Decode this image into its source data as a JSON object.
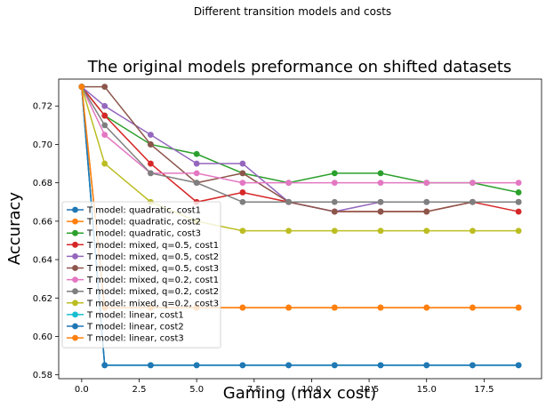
{
  "figure": {
    "suptitle": "Different transition models and costs"
  },
  "chart_data": {
    "type": "line",
    "title": "The original models preformance on shifted datasets",
    "xlabel": "Gaming (max cost)",
    "ylabel": "Accuracy",
    "xlim": [
      -1,
      20
    ],
    "ylim": [
      0.578,
      0.734
    ],
    "xticks": [
      0.0,
      2.5,
      5.0,
      7.5,
      10.0,
      12.5,
      15.0,
      17.5
    ],
    "xtick_labels": [
      "0.0",
      "2.5",
      "5.0",
      "7.5",
      "10.0",
      "12.5",
      "15.0",
      "17.5"
    ],
    "yticks": [
      0.58,
      0.6,
      0.62,
      0.64,
      0.66,
      0.68,
      0.7,
      0.72
    ],
    "ytick_labels": [
      "0.58",
      "0.60",
      "0.62",
      "0.64",
      "0.66",
      "0.68",
      "0.70",
      "0.72"
    ],
    "grid": false,
    "legend_position": "lower-left",
    "x": [
      0,
      1,
      3,
      5,
      7,
      9,
      11,
      13,
      15,
      17,
      19
    ],
    "series": [
      {
        "name": "T model: quadratic, cost1",
        "color": "#1f77b4",
        "values": [
          0.73,
          0.585,
          0.585,
          0.585,
          0.585,
          0.585,
          0.585,
          0.585,
          0.585,
          0.585,
          0.585
        ]
      },
      {
        "name": "T model: quadratic, cost2",
        "color": "#ff7f0e",
        "values": [
          0.73,
          0.615,
          0.615,
          0.615,
          0.615,
          0.615,
          0.615,
          0.615,
          0.615,
          0.615,
          0.615
        ]
      },
      {
        "name": "T model: quadratic, cost3",
        "color": "#2ca02c",
        "values": [
          0.73,
          0.715,
          0.7,
          0.695,
          0.685,
          0.68,
          0.685,
          0.685,
          0.68,
          0.68,
          0.675
        ]
      },
      {
        "name": "T model: mixed, q=0.5, cost1",
        "color": "#d62728",
        "values": [
          0.73,
          0.715,
          0.69,
          0.67,
          0.675,
          0.67,
          0.665,
          0.665,
          0.665,
          0.67,
          0.665
        ]
      },
      {
        "name": "T model: mixed, q=0.5, cost2",
        "color": "#9467bd",
        "values": [
          0.73,
          0.72,
          0.705,
          0.69,
          0.69,
          0.67,
          0.665,
          0.67,
          0.67,
          0.67,
          0.67
        ]
      },
      {
        "name": "T model: mixed, q=0.5, cost3",
        "color": "#8c564b",
        "values": [
          0.73,
          0.73,
          0.7,
          0.68,
          0.685,
          0.67,
          0.665,
          0.665,
          0.665,
          0.67,
          0.67
        ]
      },
      {
        "name": "T model: mixed, q=0.2, cost1",
        "color": "#e377c2",
        "values": [
          0.73,
          0.705,
          0.685,
          0.685,
          0.68,
          0.68,
          0.68,
          0.68,
          0.68,
          0.68,
          0.68
        ]
      },
      {
        "name": "T model: mixed, q=0.2, cost2",
        "color": "#7f7f7f",
        "values": [
          0.73,
          0.71,
          0.685,
          0.68,
          0.67,
          0.67,
          0.67,
          0.67,
          0.67,
          0.67,
          0.67
        ]
      },
      {
        "name": "T model: mixed, q=0.2, cost3",
        "color": "#bcbd22",
        "values": [
          0.73,
          0.69,
          0.67,
          0.66,
          0.655,
          0.655,
          0.655,
          0.655,
          0.655,
          0.655,
          0.655
        ]
      },
      {
        "name": "T model: linear, cost1",
        "color": "#17becf",
        "values": [
          0.73,
          0.585,
          0.585,
          0.585,
          0.585,
          0.585,
          0.585,
          0.585,
          0.585,
          0.585,
          0.585
        ]
      },
      {
        "name": "T model: linear, cost2",
        "color": "#1f77b4",
        "values": [
          0.73,
          0.585,
          0.585,
          0.585,
          0.585,
          0.585,
          0.585,
          0.585,
          0.585,
          0.585,
          0.585
        ]
      },
      {
        "name": "T model: linear, cost3",
        "color": "#ff7f0e",
        "values": [
          0.73,
          0.615,
          0.615,
          0.615,
          0.615,
          0.615,
          0.615,
          0.615,
          0.615,
          0.615,
          0.615
        ]
      }
    ]
  }
}
